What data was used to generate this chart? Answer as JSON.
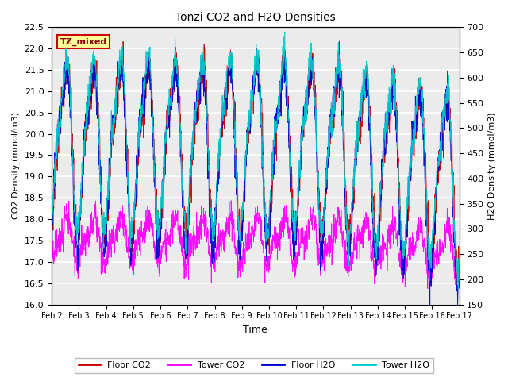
{
  "title": "Tonzi CO2 and H2O Densities",
  "xlabel": "Time",
  "ylabel_left": "CO2 Density (mmol/m3)",
  "ylabel_right": "H2O Density (mmol/m3)",
  "ylim_left": [
    16.0,
    22.5
  ],
  "ylim_right": [
    150,
    700
  ],
  "annotation_text": "TZ_mixed",
  "colors": {
    "floor_co2": "#cc0000",
    "tower_co2": "#ff00ff",
    "floor_h2o": "#0000cc",
    "tower_h2o": "#00cccc"
  },
  "legend_labels": [
    "Floor CO2",
    "Tower CO2",
    "Floor H2O",
    "Tower H2O"
  ],
  "background_color": "#ffffff",
  "grid_color": "#e0e0e0",
  "n_points": 2000
}
